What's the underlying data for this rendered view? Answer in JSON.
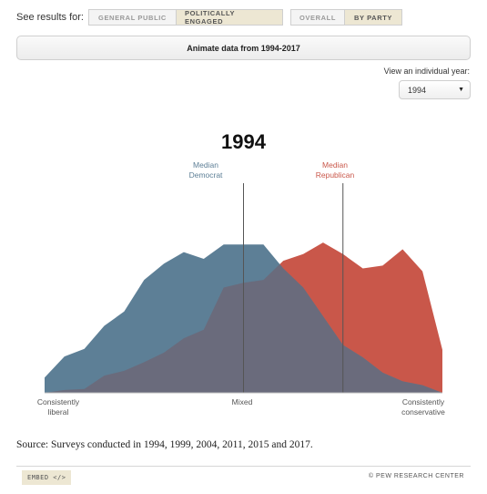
{
  "controls": {
    "results_label": "See results for:",
    "audience_buttons": [
      "GENERAL PUBLIC",
      "POLITICALLY ENGAGED"
    ],
    "audience_active": "POLITICALLY ENGAGED",
    "view_buttons": [
      "OVERALL",
      "BY PARTY"
    ],
    "view_active": "BY PARTY",
    "animate_label": "Animate data from 1994-2017",
    "year_select_label": "View an individual year:",
    "year_selected": "1994"
  },
  "chart_data": {
    "type": "area",
    "title": "1994",
    "x": [
      -10,
      -9,
      -8,
      -7,
      -6,
      -5,
      -4,
      -3,
      -2,
      -1,
      0,
      1,
      2,
      3,
      4,
      5,
      6,
      7,
      8,
      9,
      10
    ],
    "xlim": [
      -10,
      10
    ],
    "ylim": [
      0,
      160
    ],
    "series": [
      {
        "name": "Democrat",
        "color": "#5d7f96",
        "values": [
          16,
          38,
          46,
          70,
          85,
          118,
          135,
          147,
          140,
          155,
          155,
          155,
          130,
          110,
          80,
          50,
          37,
          21,
          12,
          8,
          0
        ]
      },
      {
        "name": "Republican",
        "color": "#c9574a",
        "values": [
          0,
          3,
          4,
          18,
          23,
          32,
          42,
          57,
          66,
          110,
          115,
          118,
          138,
          145,
          157,
          145,
          130,
          133,
          150,
          127,
          45
        ]
      }
    ],
    "overlap_color": "#6a6b7c",
    "medians": [
      {
        "label": "Median\nDemocrat",
        "x": 0,
        "color": "#5d7f96"
      },
      {
        "label": "Median\nRepublican",
        "x": 5,
        "color": "#c9574a"
      }
    ],
    "x_tick_labels": [
      "Consistently\nliberal",
      "Mixed",
      "Consistently\nconservative"
    ]
  },
  "source": "Source: Surveys conducted in 1994, 1999, 2004, 2011, 2015 and 2017.",
  "footer": {
    "embed_label": "EMBED </>",
    "credit": "© PEW RESEARCH CENTER"
  }
}
